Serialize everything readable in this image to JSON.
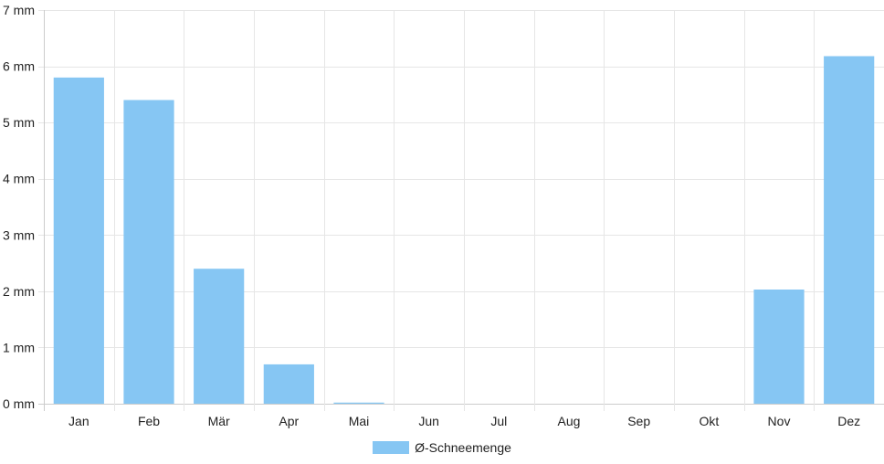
{
  "chart_data": {
    "type": "bar",
    "categories": [
      "Jan",
      "Feb",
      "Mär",
      "Apr",
      "Mai",
      "Jun",
      "Jul",
      "Aug",
      "Sep",
      "Okt",
      "Nov",
      "Dez"
    ],
    "series": [
      {
        "name": "Ø-Schneemenge",
        "values": [
          5.8,
          5.4,
          2.4,
          0.7,
          0.02,
          0,
          0,
          0,
          0,
          0,
          2.03,
          6.18
        ]
      }
    ],
    "ylim": [
      0,
      7
    ],
    "yticks": [
      0,
      1,
      2,
      3,
      4,
      5,
      6,
      7
    ],
    "yunit": " mm",
    "grid": true,
    "legend_position": "bottom",
    "colors": {
      "bar": "#86c6f3",
      "grid": "#e6e6e6",
      "axis": "#cccccc"
    }
  }
}
